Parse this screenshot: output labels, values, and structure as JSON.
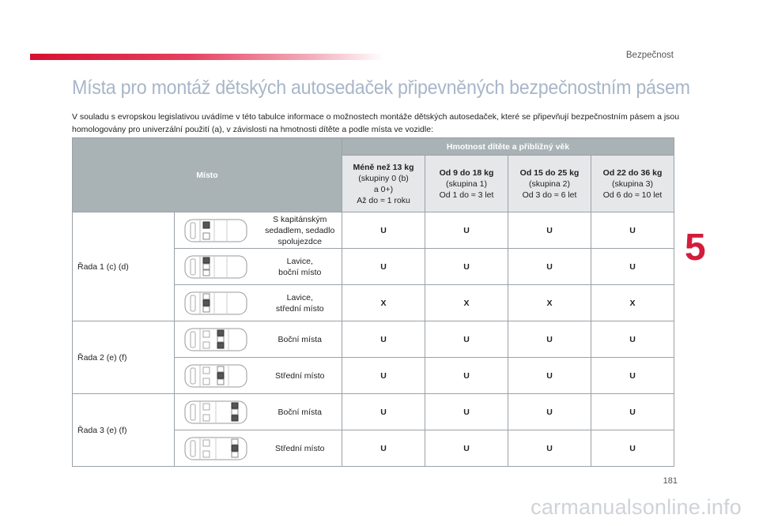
{
  "header": {
    "section": "Bezpečnost"
  },
  "page_title": "Místa pro montáž dětských autosedaček připevněných bezpečnostním pásem",
  "intro": "V souladu s evropskou legislativou uvádíme v této tabulce informace o možnostech montáže dětských autosedaček, které se připevňují bezpečnostním pásem a jsou homologovány pro univerzální použití (a), v závislosti na hmotnosti dítěte a podle místa ve vozidle:",
  "chapter_number": "5",
  "page_number": "181",
  "watermark": "carmanualsonline.info",
  "table": {
    "misto": "Místo",
    "hmotnost": "Hmotnost dítěte a přibližný věk",
    "columns": [
      {
        "title": "Méně než 13 kg",
        "line1": "(skupiny 0 (b)",
        "line2": "a 0+)",
        "line3": "Až do ≈ 1 roku"
      },
      {
        "title": "Od 9 do 18 kg",
        "line1": "(skupina 1)",
        "line2": "Od 1 do ≈ 3 let"
      },
      {
        "title": "Od 15 do 25 kg",
        "line1": "(skupina 2)",
        "line2": "Od 3 do ≈ 6 let"
      },
      {
        "title": "Od 22 do 36 kg",
        "line1": "(skupina 3)",
        "line2": "Od 6 do ≈ 10 let"
      }
    ],
    "groups": [
      {
        "label": "Řada 1 (c) (d)",
        "rows": [
          {
            "desc1": "S kapitánským",
            "desc2": "sedadlem, sedadlo",
            "desc3": "spolujezdce",
            "values": [
              "U",
              "U",
              "U",
              "U"
            ]
          },
          {
            "desc1": "Lavice,",
            "desc2": "boční místo",
            "values": [
              "U",
              "U",
              "U",
              "U"
            ]
          },
          {
            "desc1": "Lavice,",
            "desc2": "střední místo",
            "values": [
              "X",
              "X",
              "X",
              "X"
            ]
          }
        ]
      },
      {
        "label": "Řada 2 (e) (f)",
        "rows": [
          {
            "desc1": "Boční místa",
            "values": [
              "U",
              "U",
              "U",
              "U"
            ]
          },
          {
            "desc1": "Střední místo",
            "values": [
              "U",
              "U",
              "U",
              "U"
            ]
          }
        ]
      },
      {
        "label": "Řada 3 (e) (f)",
        "rows": [
          {
            "desc1": "Boční místa",
            "values": [
              "U",
              "U",
              "U",
              "U"
            ]
          },
          {
            "desc1": "Střední místo",
            "values": [
              "U",
              "U",
              "U",
              "U"
            ]
          }
        ]
      }
    ]
  }
}
